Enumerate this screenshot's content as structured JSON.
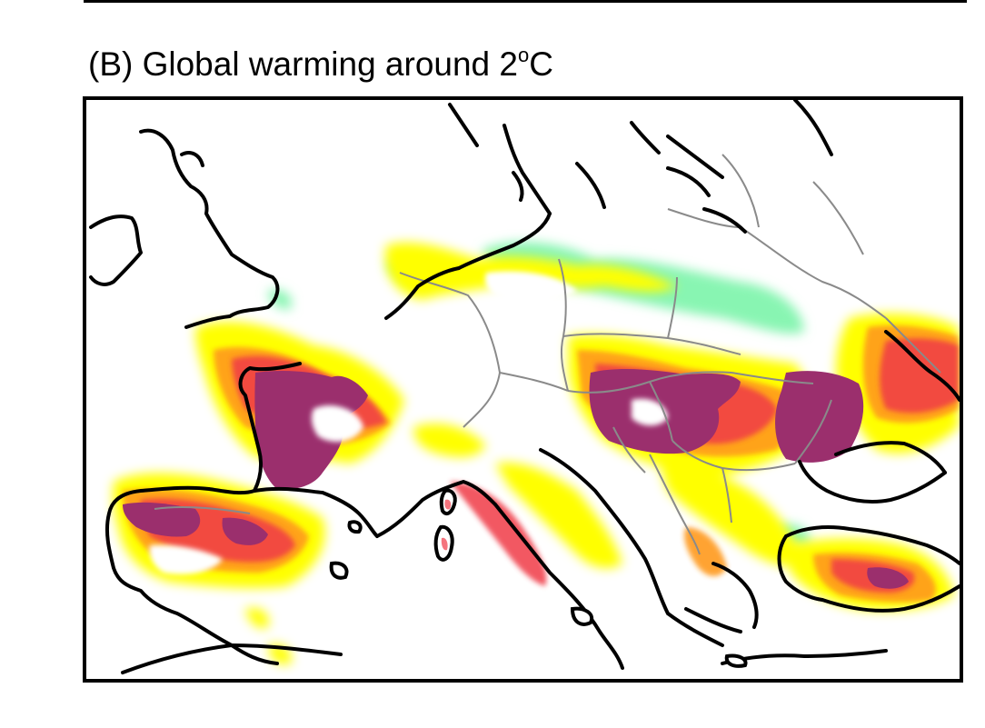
{
  "figure": {
    "title": "(B) Global warming around 2",
    "title_superscript": "o",
    "title_unit": "C"
  },
  "map": {
    "region": "Europe",
    "colors": {
      "purple": "#9b2f6d",
      "red": "#f03a47",
      "orange": "#ff9a1f",
      "yellow": "#ffff00",
      "green": "#88f5b2",
      "coast": "#000000",
      "border": "#8a8a8a"
    }
  }
}
